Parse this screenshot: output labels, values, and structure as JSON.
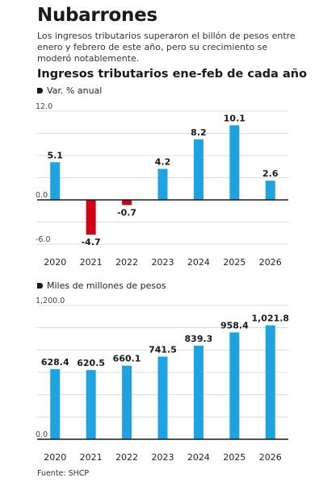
{
  "header": {
    "title": "Nubarrones",
    "subtitle": "Los ingresos tributarios superaron el billón de pesos entre enero y febrero de este año, pero su crecimiento se moderó notablemente.",
    "section_title": "Ingresos tributarios ene-feb de cada año"
  },
  "colors": {
    "positive": "#1ea3e0",
    "negative": "#d0021b",
    "grid": "#dcdcdc",
    "axis": "#1a1a1a"
  },
  "chart_data": [
    {
      "type": "bar",
      "unit_label": "Var. % anual",
      "categories": [
        "2020",
        "2021",
        "2022",
        "2023",
        "2024",
        "2025",
        "2026"
      ],
      "values": [
        5.1,
        -4.7,
        -0.7,
        4.2,
        8.2,
        10.1,
        2.6
      ],
      "value_labels": [
        "5.1",
        "-4.7",
        "-0.7",
        "4.2",
        "8.2",
        "10.1",
        "2.6"
      ],
      "ylim": [
        -6.0,
        12.0
      ],
      "yticks": [
        12.0,
        0.0,
        -6.0
      ],
      "ytick_labels": [
        "12.0",
        "0.0",
        "-6.0"
      ],
      "grid": true
    },
    {
      "type": "bar",
      "unit_label": "Miles de millones de pesos",
      "categories": [
        "2020",
        "2021",
        "2022",
        "2023",
        "2024",
        "2025",
        "2026"
      ],
      "values": [
        628.4,
        620.5,
        660.1,
        741.5,
        839.3,
        958.4,
        1021.8
      ],
      "value_labels": [
        "628.4",
        "620.5",
        "660.1",
        "741.5",
        "839.3",
        "958.4",
        "1,021.8"
      ],
      "ylim": [
        0.0,
        1200.0
      ],
      "yticks": [
        1200.0,
        0.0
      ],
      "ytick_labels": [
        "1,200.0",
        "0.0"
      ],
      "grid": true
    }
  ],
  "footer": {
    "source": "Fuente: SHCP"
  }
}
